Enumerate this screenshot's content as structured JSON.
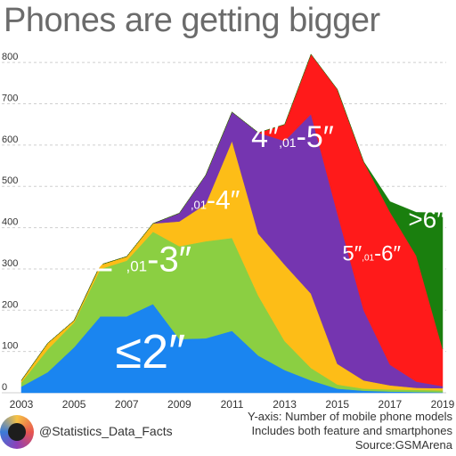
{
  "header": {
    "title": "Phones are getting bigger"
  },
  "footer": {
    "handle": "@Statistics_Data_Facts",
    "notes": [
      "Y-axis: Number of mobile phone models",
      "Includes both feature and smartphones",
      "Source:GSMArena"
    ]
  },
  "chart_data": {
    "type": "area",
    "stacked": true,
    "title": "Phones are getting bigger",
    "xlabel": "",
    "ylabel": "Y-axis: Number of mobile phone models",
    "ylim": [
      0,
      850
    ],
    "xlim": [
      2003,
      2019
    ],
    "grid": true,
    "yticks": [
      0,
      100,
      200,
      300,
      400,
      500,
      600,
      700,
      800
    ],
    "xticks": [
      2003,
      2005,
      2007,
      2009,
      2011,
      2013,
      2015,
      2017,
      2019
    ],
    "x": [
      2003,
      2004,
      2005,
      2006,
      2007,
      2008,
      2009,
      2010,
      2011,
      2012,
      2013,
      2014,
      2015,
      2016,
      2017,
      2018,
      2019
    ],
    "series": [
      {
        "name": "≤2″",
        "color": "#1a85f0",
        "label_parts": [
          "≤2″"
        ],
        "values": [
          15,
          50,
          110,
          185,
          185,
          215,
          130,
          132,
          150,
          90,
          55,
          30,
          10,
          5,
          3,
          2,
          1
        ]
      },
      {
        "name": "2″-3″",
        "color": "#8bcf42",
        "label_parts": [
          "2″",
          ",01",
          "-3″"
        ],
        "values": [
          10,
          55,
          60,
          115,
          135,
          175,
          225,
          235,
          225,
          145,
          70,
          30,
          10,
          5,
          5,
          5,
          5
        ]
      },
      {
        "name": "3″-4″",
        "color": "#fdbd17",
        "label_parts": [
          "3″",
          ",01",
          "-4″"
        ],
        "values": [
          5,
          15,
          5,
          10,
          10,
          20,
          60,
          90,
          235,
          150,
          185,
          180,
          50,
          20,
          10,
          5,
          5
        ]
      },
      {
        "name": "4″-5″",
        "color": "#7535b0",
        "label_parts": [
          "4″",
          ",01",
          "-5″"
        ],
        "values": [
          0,
          0,
          0,
          0,
          0,
          0,
          20,
          70,
          70,
          245,
          300,
          435,
          365,
          170,
          50,
          15,
          5
        ]
      },
      {
        "name": "5″-6″",
        "color": "#ff1a1a",
        "label_parts": [
          "5″",
          ",01",
          "-6″"
        ],
        "values": [
          0,
          0,
          0,
          0,
          0,
          0,
          0,
          0,
          0,
          0,
          40,
          145,
          300,
          360,
          370,
          305,
          90
        ]
      },
      {
        "name": ">6″",
        "color": "#1a7f0e",
        "label_parts": [
          ">6″"
        ],
        "values": [
          0,
          0,
          0,
          0,
          0,
          0,
          0,
          0,
          0,
          0,
          0,
          0,
          0,
          0,
          25,
          105,
          330
        ]
      }
    ]
  }
}
